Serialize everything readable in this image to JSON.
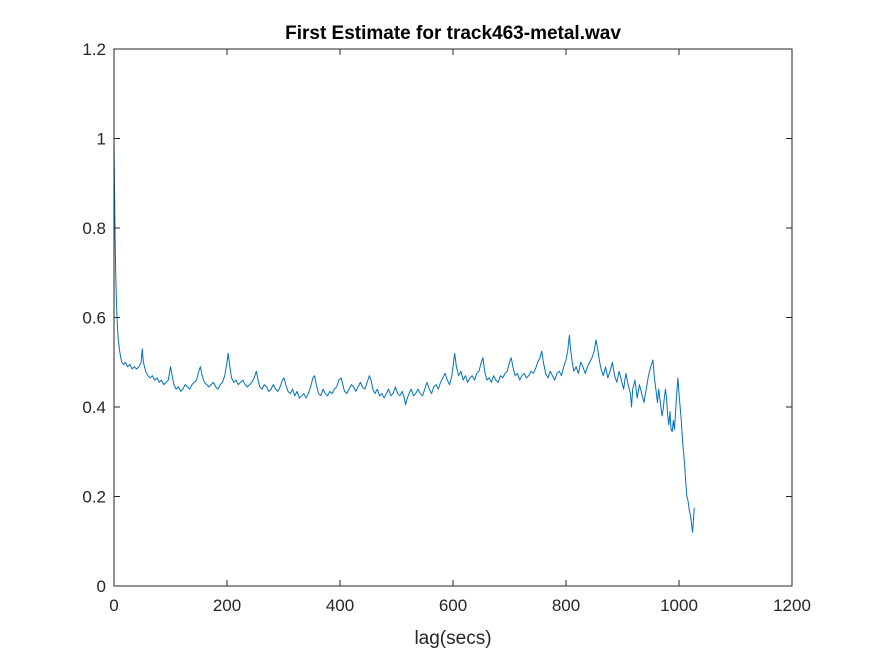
{
  "chart_data": {
    "type": "line",
    "title": "First Estimate for track463-metal.wav",
    "xlabel": "lag(secs)",
    "ylabel": "",
    "xlim": [
      0,
      1200
    ],
    "ylim": [
      0,
      1.2
    ],
    "xticks": [
      0,
      200,
      400,
      600,
      800,
      1000,
      1200
    ],
    "yticks": [
      0,
      0.2,
      0.4,
      0.6,
      0.8,
      1,
      1.2
    ],
    "xtick_labels": [
      "0",
      "200",
      "400",
      "600",
      "800",
      "1000",
      "1200"
    ],
    "ytick_labels": [
      "0",
      "0.2",
      "0.4",
      "0.6",
      "0.8",
      "1",
      "1.2"
    ],
    "grid": false,
    "box": true,
    "series": [
      {
        "color": "#0072BD",
        "points": [
          [
            0,
            1.0
          ],
          [
            1,
            0.88
          ],
          [
            2,
            0.78
          ],
          [
            3,
            0.7
          ],
          [
            4,
            0.65
          ],
          [
            5,
            0.61
          ],
          [
            6,
            0.58
          ],
          [
            7,
            0.56
          ],
          [
            8,
            0.545
          ],
          [
            9,
            0.535
          ],
          [
            10,
            0.525
          ],
          [
            12,
            0.51
          ],
          [
            14,
            0.5
          ],
          [
            17,
            0.495
          ],
          [
            20,
            0.5
          ],
          [
            24,
            0.49
          ],
          [
            28,
            0.495
          ],
          [
            32,
            0.485
          ],
          [
            36,
            0.49
          ],
          [
            40,
            0.485
          ],
          [
            44,
            0.49
          ],
          [
            48,
            0.5
          ],
          [
            50,
            0.53
          ],
          [
            52,
            0.5
          ],
          [
            56,
            0.48
          ],
          [
            60,
            0.47
          ],
          [
            64,
            0.465
          ],
          [
            68,
            0.47
          ],
          [
            72,
            0.46
          ],
          [
            76,
            0.465
          ],
          [
            80,
            0.455
          ],
          [
            84,
            0.46
          ],
          [
            88,
            0.45
          ],
          [
            92,
            0.455
          ],
          [
            96,
            0.46
          ],
          [
            100,
            0.49
          ],
          [
            103,
            0.47
          ],
          [
            106,
            0.45
          ],
          [
            110,
            0.44
          ],
          [
            114,
            0.445
          ],
          [
            118,
            0.435
          ],
          [
            122,
            0.44
          ],
          [
            126,
            0.45
          ],
          [
            130,
            0.445
          ],
          [
            134,
            0.44
          ],
          [
            138,
            0.45
          ],
          [
            142,
            0.455
          ],
          [
            146,
            0.46
          ],
          [
            150,
            0.48
          ],
          [
            153,
            0.49
          ],
          [
            156,
            0.47
          ],
          [
            160,
            0.455
          ],
          [
            164,
            0.45
          ],
          [
            168,
            0.445
          ],
          [
            172,
            0.45
          ],
          [
            176,
            0.455
          ],
          [
            180,
            0.445
          ],
          [
            184,
            0.44
          ],
          [
            188,
            0.45
          ],
          [
            192,
            0.455
          ],
          [
            196,
            0.47
          ],
          [
            200,
            0.5
          ],
          [
            202,
            0.52
          ],
          [
            205,
            0.49
          ],
          [
            208,
            0.465
          ],
          [
            212,
            0.455
          ],
          [
            216,
            0.46
          ],
          [
            220,
            0.45
          ],
          [
            224,
            0.455
          ],
          [
            228,
            0.46
          ],
          [
            232,
            0.45
          ],
          [
            236,
            0.445
          ],
          [
            240,
            0.45
          ],
          [
            244,
            0.455
          ],
          [
            248,
            0.465
          ],
          [
            252,
            0.48
          ],
          [
            255,
            0.46
          ],
          [
            258,
            0.445
          ],
          [
            262,
            0.44
          ],
          [
            266,
            0.45
          ],
          [
            270,
            0.445
          ],
          [
            274,
            0.435
          ],
          [
            278,
            0.44
          ],
          [
            282,
            0.45
          ],
          [
            286,
            0.44
          ],
          [
            290,
            0.435
          ],
          [
            294,
            0.445
          ],
          [
            298,
            0.46
          ],
          [
            301,
            0.465
          ],
          [
            304,
            0.45
          ],
          [
            308,
            0.435
          ],
          [
            312,
            0.43
          ],
          [
            316,
            0.44
          ],
          [
            320,
            0.425
          ],
          [
            324,
            0.435
          ],
          [
            328,
            0.42
          ],
          [
            332,
            0.425
          ],
          [
            336,
            0.43
          ],
          [
            340,
            0.42
          ],
          [
            344,
            0.43
          ],
          [
            348,
            0.445
          ],
          [
            352,
            0.465
          ],
          [
            355,
            0.47
          ],
          [
            358,
            0.45
          ],
          [
            362,
            0.43
          ],
          [
            366,
            0.425
          ],
          [
            370,
            0.44
          ],
          [
            374,
            0.43
          ],
          [
            378,
            0.425
          ],
          [
            382,
            0.435
          ],
          [
            386,
            0.43
          ],
          [
            390,
            0.44
          ],
          [
            394,
            0.445
          ],
          [
            398,
            0.46
          ],
          [
            402,
            0.465
          ],
          [
            405,
            0.45
          ],
          [
            408,
            0.435
          ],
          [
            412,
            0.43
          ],
          [
            416,
            0.44
          ],
          [
            420,
            0.45
          ],
          [
            424,
            0.445
          ],
          [
            428,
            0.435
          ],
          [
            432,
            0.445
          ],
          [
            436,
            0.455
          ],
          [
            440,
            0.445
          ],
          [
            444,
            0.44
          ],
          [
            448,
            0.455
          ],
          [
            452,
            0.47
          ],
          [
            455,
            0.46
          ],
          [
            458,
            0.44
          ],
          [
            462,
            0.43
          ],
          [
            466,
            0.44
          ],
          [
            470,
            0.425
          ],
          [
            474,
            0.43
          ],
          [
            478,
            0.42
          ],
          [
            482,
            0.43
          ],
          [
            486,
            0.44
          ],
          [
            490,
            0.425
          ],
          [
            494,
            0.43
          ],
          [
            498,
            0.445
          ],
          [
            502,
            0.43
          ],
          [
            506,
            0.425
          ],
          [
            510,
            0.435
          ],
          [
            514,
            0.42
          ],
          [
            516,
            0.405
          ],
          [
            518,
            0.415
          ],
          [
            522,
            0.43
          ],
          [
            526,
            0.44
          ],
          [
            530,
            0.425
          ],
          [
            534,
            0.43
          ],
          [
            538,
            0.44
          ],
          [
            542,
            0.43
          ],
          [
            546,
            0.425
          ],
          [
            550,
            0.44
          ],
          [
            554,
            0.455
          ],
          [
            558,
            0.44
          ],
          [
            562,
            0.43
          ],
          [
            566,
            0.445
          ],
          [
            570,
            0.45
          ],
          [
            574,
            0.44
          ],
          [
            578,
            0.455
          ],
          [
            582,
            0.465
          ],
          [
            586,
            0.475
          ],
          [
            590,
            0.46
          ],
          [
            594,
            0.45
          ],
          [
            598,
            0.47
          ],
          [
            601,
            0.5
          ],
          [
            603,
            0.52
          ],
          [
            606,
            0.49
          ],
          [
            610,
            0.47
          ],
          [
            614,
            0.48
          ],
          [
            618,
            0.46
          ],
          [
            622,
            0.47
          ],
          [
            626,
            0.455
          ],
          [
            630,
            0.465
          ],
          [
            634,
            0.47
          ],
          [
            638,
            0.46
          ],
          [
            642,
            0.475
          ],
          [
            646,
            0.48
          ],
          [
            650,
            0.5
          ],
          [
            653,
            0.51
          ],
          [
            656,
            0.48
          ],
          [
            660,
            0.46
          ],
          [
            664,
            0.465
          ],
          [
            668,
            0.455
          ],
          [
            672,
            0.47
          ],
          [
            676,
            0.46
          ],
          [
            680,
            0.455
          ],
          [
            684,
            0.47
          ],
          [
            688,
            0.465
          ],
          [
            692,
            0.475
          ],
          [
            696,
            0.48
          ],
          [
            700,
            0.5
          ],
          [
            703,
            0.51
          ],
          [
            706,
            0.49
          ],
          [
            710,
            0.47
          ],
          [
            714,
            0.475
          ],
          [
            718,
            0.46
          ],
          [
            722,
            0.47
          ],
          [
            726,
            0.475
          ],
          [
            730,
            0.465
          ],
          [
            734,
            0.47
          ],
          [
            738,
            0.48
          ],
          [
            742,
            0.475
          ],
          [
            746,
            0.485
          ],
          [
            750,
            0.5
          ],
          [
            754,
            0.51
          ],
          [
            757,
            0.525
          ],
          [
            760,
            0.5
          ],
          [
            764,
            0.475
          ],
          [
            768,
            0.465
          ],
          [
            772,
            0.48
          ],
          [
            776,
            0.47
          ],
          [
            780,
            0.46
          ],
          [
            784,
            0.475
          ],
          [
            788,
            0.48
          ],
          [
            792,
            0.47
          ],
          [
            796,
            0.49
          ],
          [
            800,
            0.505
          ],
          [
            803,
            0.525
          ],
          [
            806,
            0.56
          ],
          [
            808,
            0.53
          ],
          [
            811,
            0.5
          ],
          [
            814,
            0.48
          ],
          [
            818,
            0.49
          ],
          [
            822,
            0.475
          ],
          [
            826,
            0.5
          ],
          [
            830,
            0.49
          ],
          [
            834,
            0.475
          ],
          [
            838,
            0.49
          ],
          [
            842,
            0.5
          ],
          [
            846,
            0.51
          ],
          [
            850,
            0.525
          ],
          [
            853,
            0.55
          ],
          [
            856,
            0.53
          ],
          [
            859,
            0.505
          ],
          [
            862,
            0.485
          ],
          [
            866,
            0.47
          ],
          [
            870,
            0.49
          ],
          [
            874,
            0.465
          ],
          [
            878,
            0.48
          ],
          [
            882,
            0.5
          ],
          [
            886,
            0.47
          ],
          [
            890,
            0.455
          ],
          [
            894,
            0.48
          ],
          [
            898,
            0.46
          ],
          [
            902,
            0.44
          ],
          [
            906,
            0.475
          ],
          [
            910,
            0.45
          ],
          [
            914,
            0.43
          ],
          [
            916,
            0.4
          ],
          [
            918,
            0.44
          ],
          [
            922,
            0.46
          ],
          [
            926,
            0.42
          ],
          [
            930,
            0.45
          ],
          [
            934,
            0.43
          ],
          [
            938,
            0.41
          ],
          [
            942,
            0.44
          ],
          [
            946,
            0.47
          ],
          [
            950,
            0.49
          ],
          [
            954,
            0.505
          ],
          [
            956,
            0.47
          ],
          [
            958,
            0.45
          ],
          [
            960,
            0.43
          ],
          [
            962,
            0.41
          ],
          [
            964,
            0.44
          ],
          [
            966,
            0.42
          ],
          [
            968,
            0.4
          ],
          [
            970,
            0.38
          ],
          [
            972,
            0.395
          ],
          [
            974,
            0.42
          ],
          [
            976,
            0.44
          ],
          [
            978,
            0.42
          ],
          [
            980,
            0.38
          ],
          [
            982,
            0.36
          ],
          [
            984,
            0.39
          ],
          [
            986,
            0.35
          ],
          [
            988,
            0.345
          ],
          [
            990,
            0.37
          ],
          [
            992,
            0.35
          ],
          [
            994,
            0.39
          ],
          [
            996,
            0.43
          ],
          [
            998,
            0.465
          ],
          [
            1000,
            0.43
          ],
          [
            1002,
            0.4
          ],
          [
            1004,
            0.37
          ],
          [
            1006,
            0.33
          ],
          [
            1008,
            0.3
          ],
          [
            1010,
            0.27
          ],
          [
            1012,
            0.23
          ],
          [
            1014,
            0.2
          ],
          [
            1016,
            0.19
          ],
          [
            1018,
            0.17
          ],
          [
            1020,
            0.16
          ],
          [
            1022,
            0.14
          ],
          [
            1024,
            0.12
          ],
          [
            1026,
            0.155
          ],
          [
            1027,
            0.175
          ]
        ]
      }
    ]
  }
}
